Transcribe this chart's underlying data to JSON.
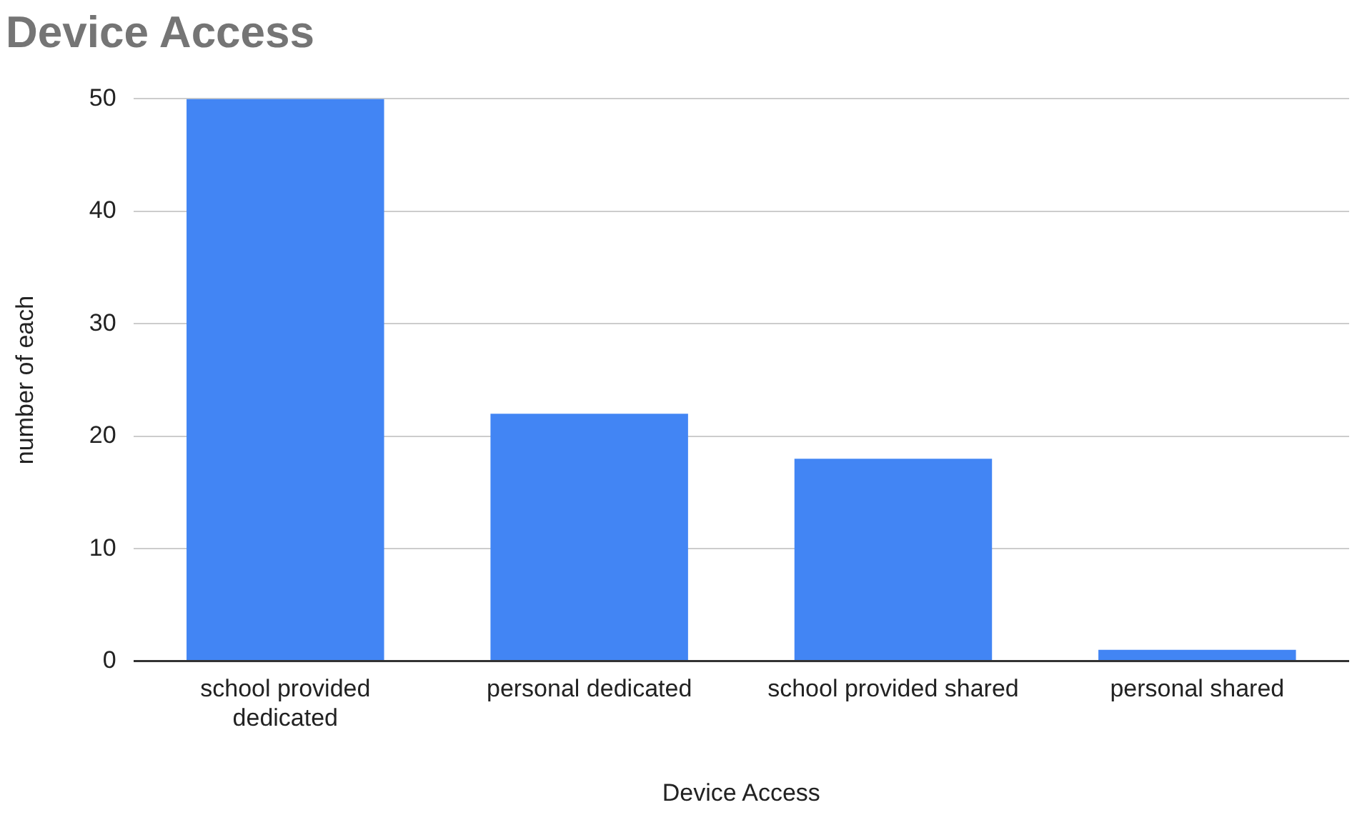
{
  "chart_data": {
    "type": "bar",
    "title": "Device Access",
    "xlabel": "Device Access",
    "ylabel": "number of each",
    "categories": [
      "school provided dedicated",
      "personal dedicated",
      "school provided shared",
      "personal shared"
    ],
    "values": [
      50,
      22,
      18,
      1
    ],
    "color": "#4285f4",
    "ylim": [
      0,
      50
    ],
    "yticks": [
      0,
      10,
      20,
      30,
      40,
      50
    ],
    "grid": "y",
    "legend": false
  }
}
